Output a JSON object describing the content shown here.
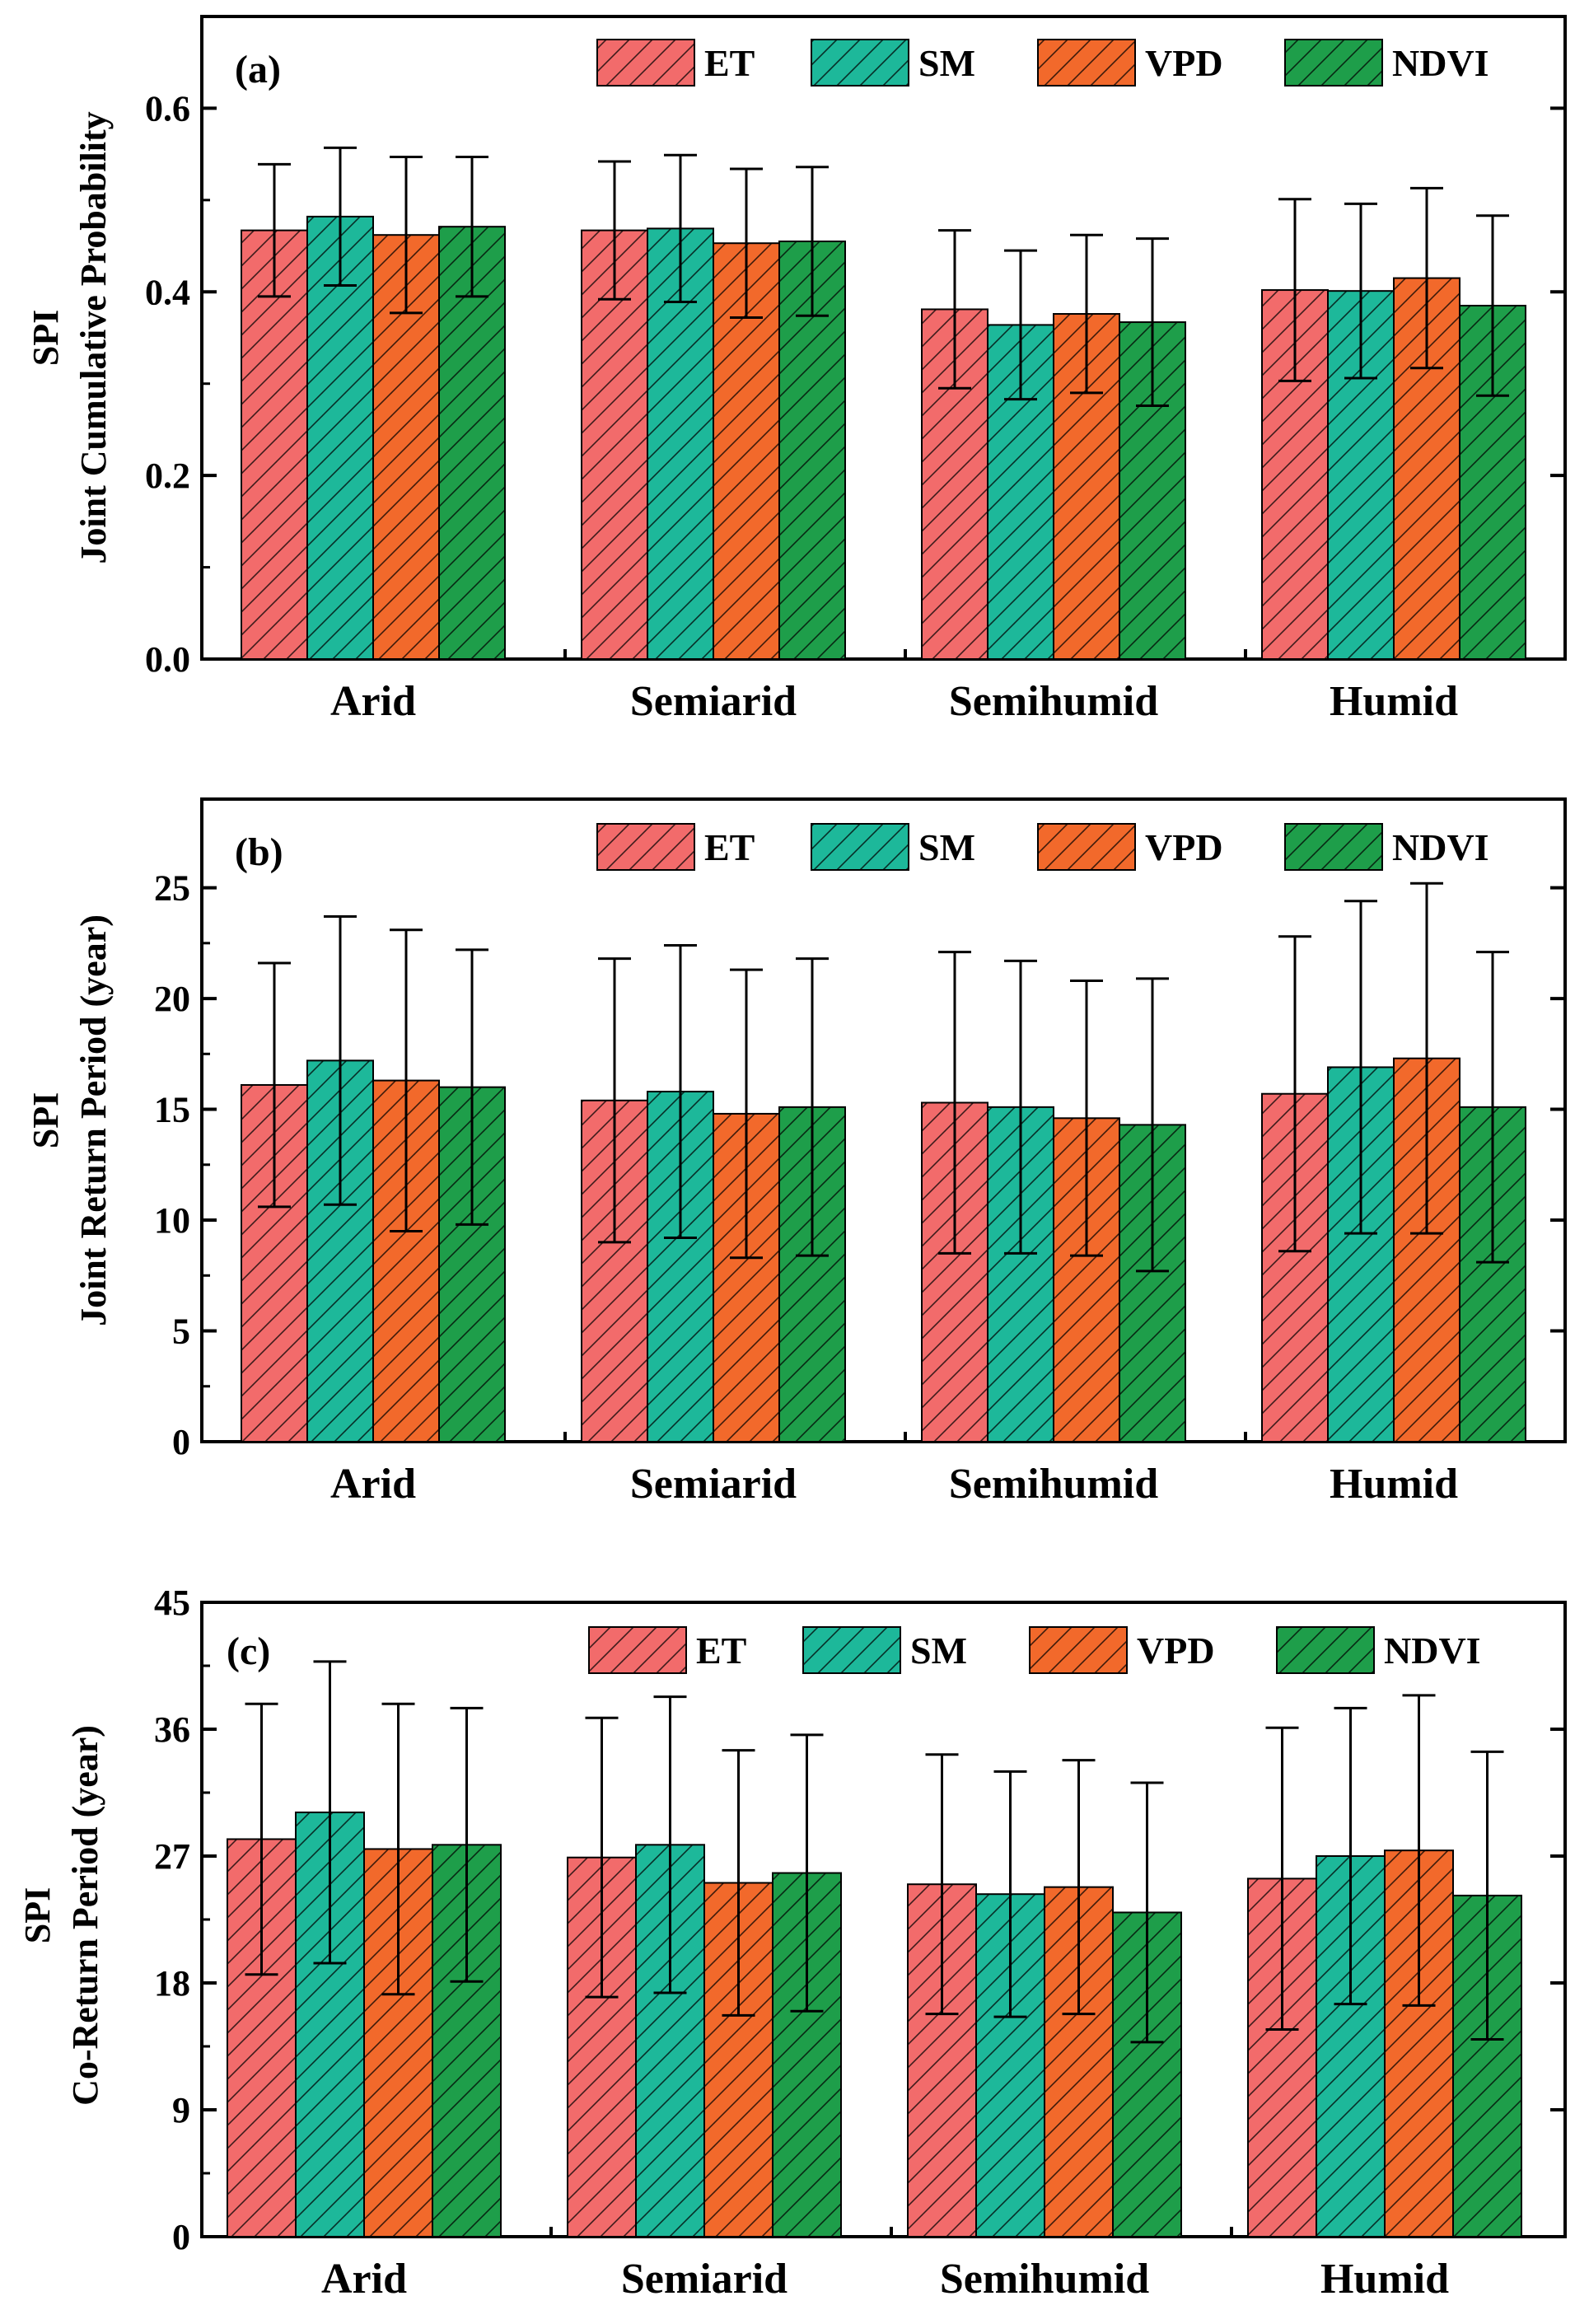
{
  "series_styles": [
    {
      "name": "ET",
      "color": "#F26B6B"
    },
    {
      "name": "SM",
      "color": "#1DB89A"
    },
    {
      "name": "VPD",
      "color": "#F2692B"
    },
    {
      "name": "NDVI",
      "color": "#1E9E4A"
    }
  ],
  "chart_data": [
    {
      "type": "bar",
      "panel_label": "(a)",
      "title": "",
      "ylabel_top": "SPI",
      "ylabel": "Joint Cumulative Probability",
      "categories": [
        "Arid",
        "Semiarid",
        "Semihumid",
        "Humid"
      ],
      "ylim": [
        0,
        0.7
      ],
      "yticks": [
        0.0,
        0.2,
        0.4,
        0.6
      ],
      "ytick_labels": [
        "0.0",
        "0.2",
        "0.4",
        "0.6"
      ],
      "legend": "top-right",
      "series": [
        {
          "name": "ET",
          "values": [
            0.467,
            0.467,
            0.381,
            0.402
          ],
          "errors": [
            0.072,
            0.075,
            0.086,
            0.099
          ]
        },
        {
          "name": "SM",
          "values": [
            0.482,
            0.469,
            0.364,
            0.401
          ],
          "errors": [
            0.075,
            0.08,
            0.081,
            0.095
          ]
        },
        {
          "name": "VPD",
          "values": [
            0.462,
            0.453,
            0.376,
            0.415
          ],
          "errors": [
            0.085,
            0.081,
            0.086,
            0.098
          ]
        },
        {
          "name": "NDVI",
          "values": [
            0.471,
            0.455,
            0.367,
            0.385
          ],
          "errors": [
            0.076,
            0.081,
            0.091,
            0.098
          ]
        }
      ]
    },
    {
      "type": "bar",
      "panel_label": "(b)",
      "title": "",
      "ylabel_top": "SPI",
      "ylabel": "Joint Return Period (year)",
      "categories": [
        "Arid",
        "Semiarid",
        "Semihumid",
        "Humid"
      ],
      "ylim": [
        0,
        29
      ],
      "yticks": [
        0,
        5,
        10,
        15,
        20,
        25
      ],
      "ytick_labels": [
        "0",
        "5",
        "10",
        "15",
        "20",
        "25"
      ],
      "legend": "top-right",
      "series": [
        {
          "name": "ET",
          "values": [
            16.1,
            15.4,
            15.3,
            15.7
          ],
          "errors": [
            5.5,
            6.4,
            6.8,
            7.1
          ]
        },
        {
          "name": "SM",
          "values": [
            17.2,
            15.8,
            15.1,
            16.9
          ],
          "errors": [
            6.5,
            6.6,
            6.6,
            7.5
          ]
        },
        {
          "name": "VPD",
          "values": [
            16.3,
            14.8,
            14.6,
            17.3
          ],
          "errors": [
            6.8,
            6.5,
            6.2,
            7.9
          ]
        },
        {
          "name": "NDVI",
          "values": [
            16.0,
            15.1,
            14.3,
            15.1
          ],
          "errors": [
            6.2,
            6.7,
            6.6,
            7.0
          ]
        }
      ]
    },
    {
      "type": "bar",
      "panel_label": "(c)",
      "title": "",
      "ylabel_top": "SPI",
      "ylabel": "Co-Return Period (year)",
      "categories": [
        "Arid",
        "Semiarid",
        "Semihumid",
        "Humid"
      ],
      "ylim": [
        0,
        45
      ],
      "yticks": [
        0,
        9,
        18,
        27,
        36,
        45
      ],
      "ytick_labels": [
        "0",
        "9",
        "18",
        "27",
        "36",
        "45"
      ],
      "legend": "top-right",
      "series": [
        {
          "name": "ET",
          "values": [
            28.2,
            26.9,
            25.0,
            25.4
          ],
          "errors": [
            9.6,
            9.9,
            9.2,
            10.7
          ]
        },
        {
          "name": "SM",
          "values": [
            30.1,
            27.8,
            24.3,
            27.0
          ],
          "errors": [
            10.7,
            10.5,
            8.7,
            10.5
          ]
        },
        {
          "name": "VPD",
          "values": [
            27.5,
            25.1,
            24.8,
            27.4
          ],
          "errors": [
            10.3,
            9.4,
            9.0,
            11.0
          ]
        },
        {
          "name": "NDVI",
          "values": [
            27.8,
            25.8,
            23.0,
            24.2
          ],
          "errors": [
            9.7,
            9.8,
            9.2,
            10.2
          ]
        }
      ]
    }
  ]
}
